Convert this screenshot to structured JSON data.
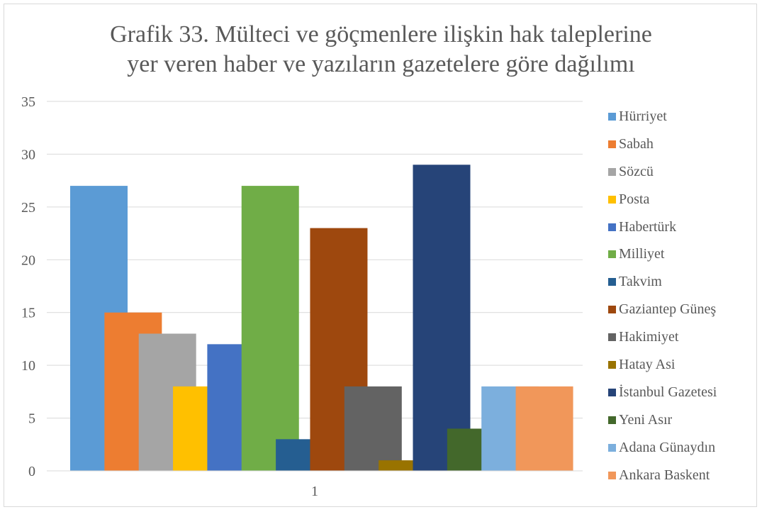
{
  "chart_data": {
    "type": "bar",
    "title_lines": [
      "Grafik 33. Mülteci ve göçmenlere ilişkin hak taleplerine",
      "yer veren haber ve yazıların gazetelere göre dağılımı"
    ],
    "categories": [
      "1"
    ],
    "ylim": [
      0,
      35
    ],
    "yticks": [
      0,
      5,
      10,
      15,
      20,
      25,
      30,
      35
    ],
    "grid": true,
    "legend_position": "right",
    "series": [
      {
        "name": "Hürriyet",
        "values": [
          27
        ],
        "color": "#5b9bd5"
      },
      {
        "name": "Sabah",
        "values": [
          15
        ],
        "color": "#ed7d31"
      },
      {
        "name": "Sözcü",
        "values": [
          13
        ],
        "color": "#a5a5a5"
      },
      {
        "name": "Posta",
        "values": [
          8
        ],
        "color": "#ffc000"
      },
      {
        "name": "Habertürk",
        "values": [
          12
        ],
        "color": "#4472c4"
      },
      {
        "name": "Milliyet",
        "values": [
          27
        ],
        "color": "#70ad47"
      },
      {
        "name": "Takvim",
        "values": [
          3
        ],
        "color": "#255e91"
      },
      {
        "name": "Gaziantep Güneş",
        "values": [
          23
        ],
        "color": "#9e480e"
      },
      {
        "name": "Hakimiyet",
        "values": [
          8
        ],
        "color": "#636363"
      },
      {
        "name": "Hatay Asi",
        "values": [
          1
        ],
        "color": "#997300"
      },
      {
        "name": "İstanbul Gazetesi",
        "values": [
          29
        ],
        "color": "#264478"
      },
      {
        "name": "Yeni Asır",
        "values": [
          4
        ],
        "color": "#43682b"
      },
      {
        "name": "Adana Günaydın",
        "values": [
          8
        ],
        "color": "#7cafdd"
      },
      {
        "name": "Ankara Baskent",
        "values": [
          8
        ],
        "color": "#f1975a"
      }
    ]
  }
}
